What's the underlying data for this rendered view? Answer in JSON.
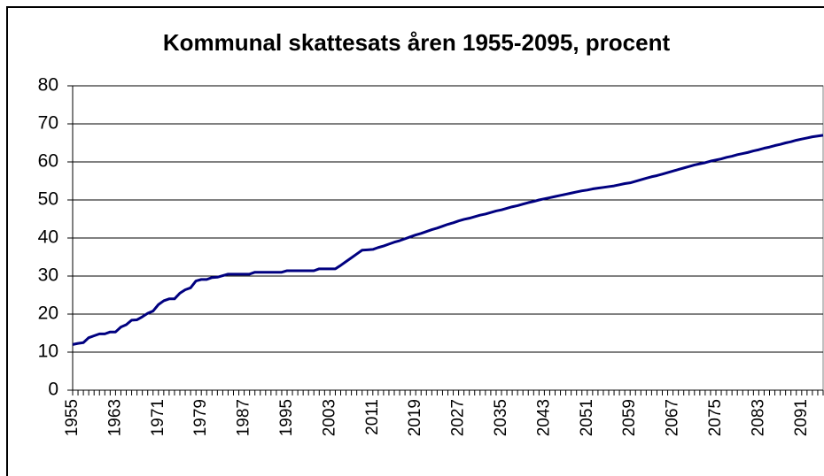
{
  "chart_data": {
    "type": "line",
    "title": "Kommunal skattesats åren 1955-2095, procent",
    "categories": [
      "1955",
      null,
      null,
      null,
      null,
      null,
      null,
      null,
      "1963",
      null,
      null,
      null,
      null,
      null,
      null,
      null,
      "1971",
      null,
      null,
      null,
      null,
      null,
      null,
      null,
      "1979",
      null,
      null,
      null,
      null,
      null,
      null,
      null,
      "1987",
      null,
      null,
      null,
      null,
      null,
      null,
      null,
      "1995",
      null,
      null,
      null,
      null,
      null,
      null,
      null,
      "2003",
      null,
      null,
      null,
      null,
      null,
      null,
      null,
      "2011",
      null,
      null,
      null,
      null,
      null,
      null,
      null,
      "2019",
      null,
      null,
      null,
      null,
      null,
      null,
      null,
      "2027",
      null,
      null,
      null,
      null,
      null,
      null,
      null,
      "2035",
      null,
      null,
      null,
      null,
      null,
      null,
      null,
      "2043",
      null,
      null,
      null,
      null,
      null,
      null,
      null,
      "2051",
      null,
      null,
      null,
      null,
      null,
      null,
      null,
      "2059",
      null,
      null,
      null,
      null,
      null,
      null,
      null,
      "2067",
      null,
      null,
      null,
      null,
      null,
      null,
      null,
      "2075",
      null,
      null,
      null,
      null,
      null,
      null,
      null,
      "2083",
      null,
      null,
      null,
      null,
      null,
      null,
      null,
      "2091",
      null,
      null,
      null,
      null
    ],
    "series": [
      {
        "name": "Kommunal skattesats",
        "color": "#000080",
        "values": [
          12,
          12.3,
          12.5,
          13.8,
          14.3,
          14.8,
          14.8,
          15.3,
          15.3,
          16.6,
          17.2,
          18.4,
          18.5,
          19.3,
          20.2,
          20.8,
          22.5,
          23.5,
          24,
          24,
          25.5,
          26.4,
          26.9,
          28.7,
          29.1,
          29.1,
          29.6,
          29.7,
          30.1,
          30.5,
          30.5,
          30.5,
          30.5,
          30.5,
          31,
          31,
          31,
          31,
          31,
          31,
          31.4,
          31.4,
          31.4,
          31.4,
          31.4,
          31.4,
          31.9,
          31.9,
          31.9,
          31.9,
          32.8,
          33.8,
          34.8,
          35.8,
          36.8,
          36.9,
          37,
          37.5,
          37.9,
          38.4,
          38.9,
          39.3,
          39.8,
          40.3,
          40.8,
          41.2,
          41.7,
          42.2,
          42.6,
          43.1,
          43.6,
          44,
          44.5,
          44.9,
          45.2,
          45.6,
          46,
          46.3,
          46.7,
          47.1,
          47.4,
          47.8,
          48.2,
          48.5,
          48.9,
          49.3,
          49.6,
          50,
          50.3,
          50.6,
          50.9,
          51.2,
          51.5,
          51.8,
          52.1,
          52.4,
          52.6,
          52.9,
          53.1,
          53.3,
          53.5,
          53.7,
          54,
          54.3,
          54.5,
          54.9,
          55.3,
          55.7,
          56.1,
          56.4,
          56.8,
          57.2,
          57.6,
          58,
          58.4,
          58.8,
          59.2,
          59.5,
          59.8,
          60.2,
          60.5,
          60.8,
          61.2,
          61.5,
          61.9,
          62.2,
          62.5,
          62.9,
          63.2,
          63.6,
          63.9,
          64.3,
          64.6,
          65,
          65.3,
          65.7,
          66,
          66.3,
          66.6,
          66.8,
          67
        ]
      }
    ],
    "ylim": [
      0,
      80
    ],
    "yticks": [
      0,
      10,
      20,
      30,
      40,
      50,
      60,
      70,
      80
    ],
    "grid": true
  }
}
